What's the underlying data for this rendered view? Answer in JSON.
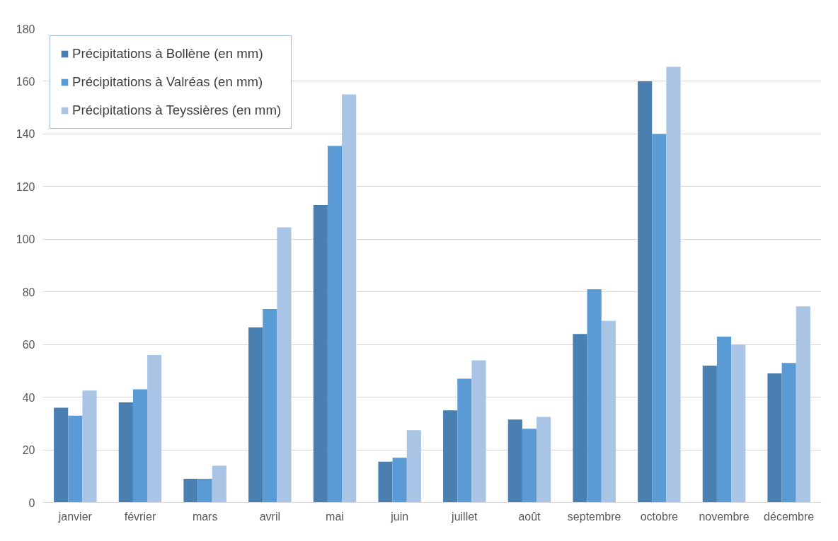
{
  "chart_data": {
    "type": "bar",
    "categories": [
      "janvier",
      "février",
      "mars",
      "avril",
      "mai",
      "juin",
      "juillet",
      "août",
      "septembre",
      "octobre",
      "novembre",
      "décembre"
    ],
    "series": [
      {
        "name": "Précipitations à Bollène (en mm)",
        "color": "#4a7fb2",
        "values": [
          36,
          38,
          9,
          66.5,
          113,
          15.5,
          35,
          31.5,
          64,
          160,
          52,
          49
        ]
      },
      {
        "name": "Précipitations à Valréas (en mm)",
        "color": "#5b9bd5",
        "values": [
          33,
          43,
          9,
          73.5,
          135.5,
          17,
          47,
          28,
          81,
          140,
          63,
          53
        ]
      },
      {
        "name": "Précipitations à Teyssières (en mm)",
        "color": "#aac4e6",
        "values": [
          42.5,
          56,
          14,
          104.5,
          155,
          27.5,
          54,
          32.5,
          69,
          165.5,
          60,
          74.5
        ]
      }
    ],
    "ylim": [
      0,
      180
    ],
    "yticks": [
      0,
      20,
      40,
      60,
      80,
      100,
      120,
      140,
      160,
      180
    ],
    "grid": "y",
    "legend": "top left"
  }
}
